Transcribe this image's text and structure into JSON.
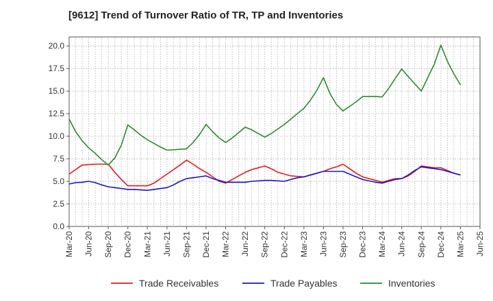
{
  "chart_data": {
    "type": "line",
    "title": "[9612]  Trend of Turnover Ratio of TR, TP and Inventories",
    "xlabel": "",
    "ylabel": "",
    "ylim": [
      0,
      21
    ],
    "yticks": [
      "0.0",
      "2.5",
      "5.0",
      "7.5",
      "10.0",
      "12.5",
      "15.0",
      "17.5",
      "20.0"
    ],
    "x_tick_labels": [
      "Mar-20",
      "Jun-20",
      "Sep-20",
      "Dec-20",
      "Mar-21",
      "Jun-21",
      "Sep-21",
      "Dec-21",
      "Mar-22",
      "Jun-22",
      "Sep-22",
      "Dec-22",
      "Mar-23",
      "Jun-23",
      "Sep-23",
      "Dec-23",
      "Mar-24",
      "Jun-24",
      "Sep-24",
      "Dec-24",
      "Mar-25",
      "Jun-25"
    ],
    "x": [
      "Mar-20",
      "Apr-20",
      "May-20",
      "Jun-20",
      "Jul-20",
      "Aug-20",
      "Sep-20",
      "Oct-20",
      "Nov-20",
      "Dec-20",
      "Jan-21",
      "Feb-21",
      "Mar-21",
      "Apr-21",
      "May-21",
      "Jun-21",
      "Jul-21",
      "Aug-21",
      "Sep-21",
      "Oct-21",
      "Nov-21",
      "Dec-21",
      "Jan-22",
      "Feb-22",
      "Mar-22",
      "Apr-22",
      "May-22",
      "Jun-22",
      "Jul-22",
      "Aug-22",
      "Sep-22",
      "Oct-22",
      "Nov-22",
      "Dec-22",
      "Jan-23",
      "Feb-23",
      "Mar-23",
      "Apr-23",
      "May-23",
      "Jun-23",
      "Jul-23",
      "Aug-23",
      "Sep-23",
      "Oct-23",
      "Nov-23",
      "Dec-23",
      "Jan-24",
      "Feb-24",
      "Mar-24",
      "Apr-24",
      "May-24",
      "Jun-24",
      "Jul-24",
      "Aug-24",
      "Sep-24",
      "Oct-24",
      "Nov-24",
      "Dec-24",
      "Jan-25",
      "Feb-25",
      "Mar-25"
    ],
    "series": [
      {
        "name": "Trade Receivables",
        "color": "#e8151b",
        "values": [
          5.8,
          6.3,
          6.8,
          6.85,
          6.9,
          6.9,
          6.9,
          6.0,
          5.2,
          4.5,
          4.5,
          4.5,
          4.5,
          4.8,
          5.3,
          5.8,
          6.3,
          6.8,
          7.35,
          6.9,
          6.4,
          6.0,
          5.5,
          5.0,
          4.8,
          5.2,
          5.6,
          6.0,
          6.3,
          6.5,
          6.7,
          6.4,
          6.0,
          5.8,
          5.6,
          5.55,
          5.5,
          5.7,
          5.9,
          6.1,
          6.4,
          6.6,
          6.9,
          6.4,
          5.9,
          5.5,
          5.3,
          5.1,
          4.9,
          5.1,
          5.3,
          5.3,
          5.6,
          6.1,
          6.7,
          6.6,
          6.5,
          6.5,
          6.2,
          5.9,
          5.7
        ]
      },
      {
        "name": "Trade Payables",
        "color": "#1515d0",
        "values": [
          4.7,
          4.85,
          4.9,
          5.0,
          4.85,
          4.6,
          4.4,
          4.3,
          4.2,
          4.1,
          4.1,
          4.05,
          4.0,
          4.1,
          4.2,
          4.3,
          4.6,
          5.0,
          5.3,
          5.4,
          5.5,
          5.6,
          5.3,
          5.1,
          4.9,
          4.9,
          4.9,
          4.9,
          5.0,
          5.05,
          5.1,
          5.1,
          5.05,
          5.0,
          5.2,
          5.4,
          5.5,
          5.7,
          5.9,
          6.1,
          6.1,
          6.1,
          6.1,
          5.8,
          5.5,
          5.2,
          5.05,
          4.9,
          4.8,
          5.0,
          5.2,
          5.3,
          5.7,
          6.2,
          6.6,
          6.5,
          6.4,
          6.3,
          6.1,
          5.9,
          5.7
        ]
      },
      {
        "name": "Inventories",
        "color": "#2a8a2a",
        "values": [
          11.9,
          10.5,
          9.5,
          8.7,
          8.1,
          7.4,
          6.8,
          7.6,
          9.0,
          11.25,
          10.7,
          10.1,
          9.6,
          9.2,
          8.8,
          8.45,
          8.5,
          8.55,
          8.6,
          9.3,
          10.2,
          11.3,
          10.5,
          9.8,
          9.3,
          9.8,
          10.4,
          11.0,
          10.7,
          10.3,
          9.9,
          10.3,
          10.8,
          11.3,
          11.9,
          12.5,
          13.1,
          14.0,
          15.1,
          16.5,
          14.7,
          13.5,
          12.8,
          13.3,
          13.8,
          14.4,
          14.4,
          14.4,
          14.35,
          15.3,
          16.4,
          17.45,
          16.6,
          15.8,
          15.0,
          16.5,
          18.0,
          20.1,
          18.3,
          16.9,
          15.7
        ]
      }
    ],
    "legend": {
      "placement": "bottom",
      "entries": [
        "Trade Receivables",
        "Trade Payables",
        "Inventories"
      ]
    },
    "grid": {
      "style": "dotted",
      "on": true
    }
  }
}
